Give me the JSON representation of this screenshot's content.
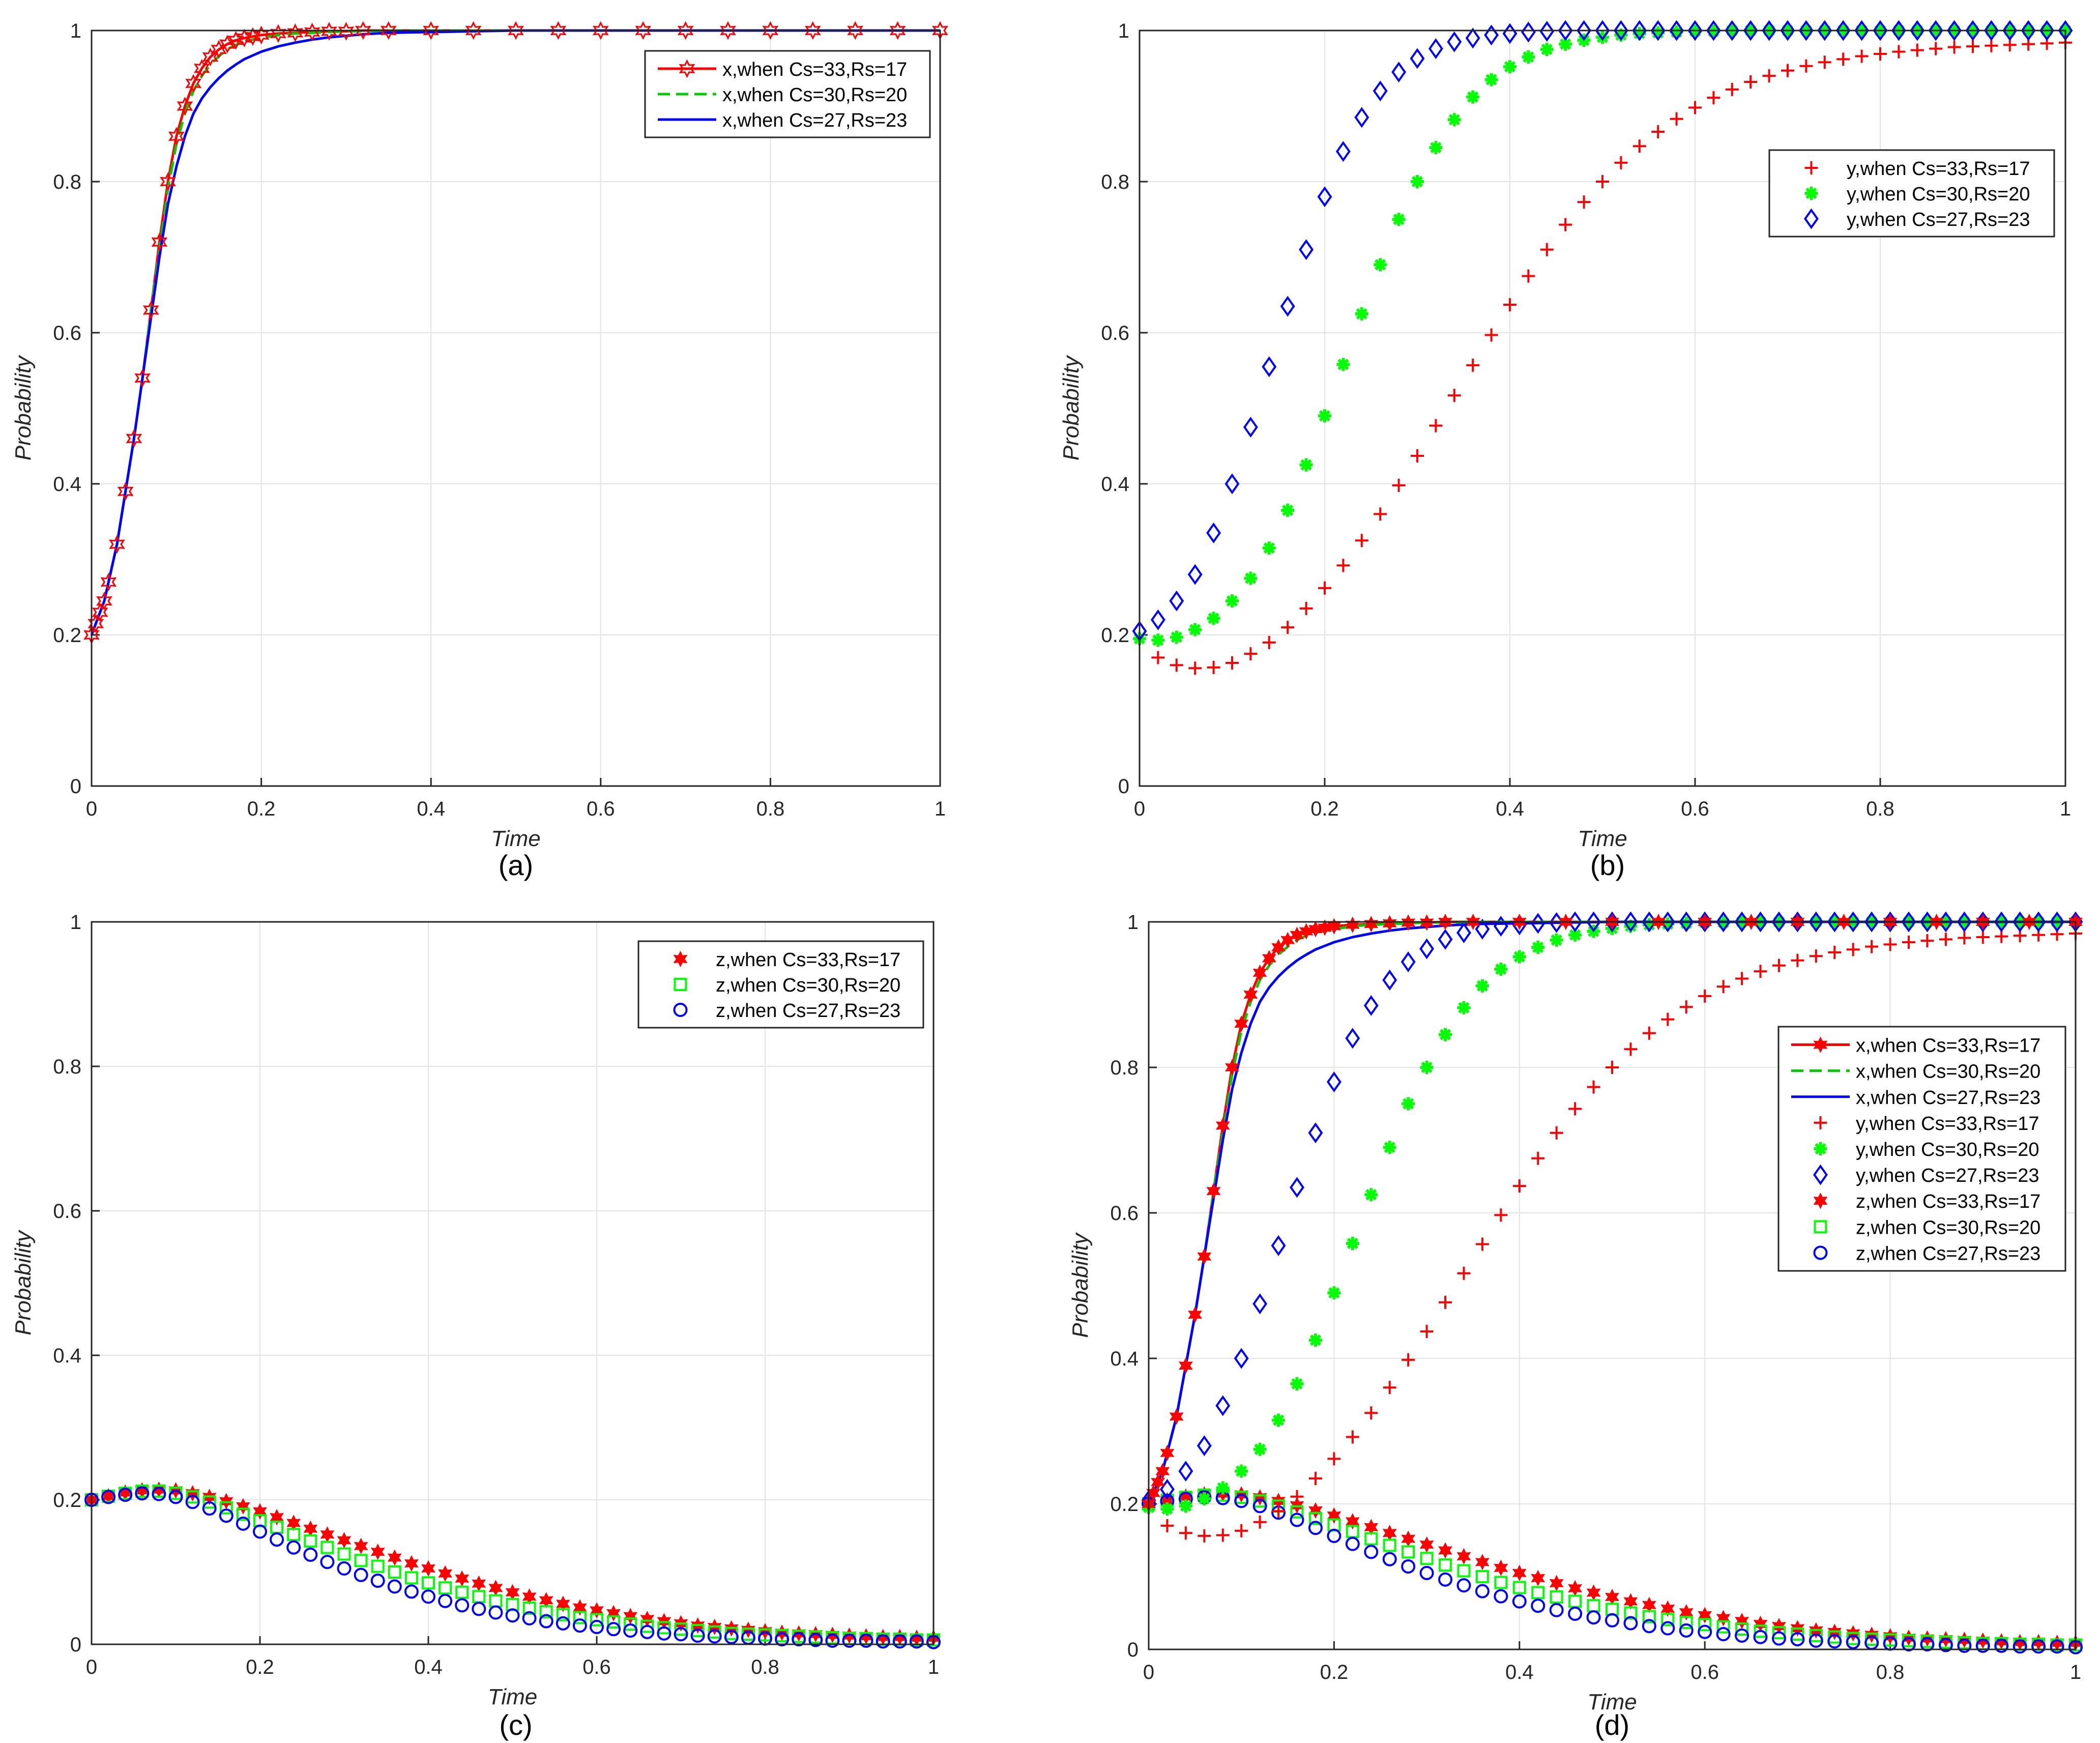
{
  "figure": {
    "panel_count": 4
  },
  "chart_data": [
    {
      "type": "line",
      "panel": "(a)",
      "xlabel": "Time",
      "ylabel": "Probability",
      "xlim": [
        0,
        1
      ],
      "ylim": [
        0,
        1
      ],
      "xticks": [
        "0",
        "0.2",
        "0.4",
        "0.6",
        "0.8",
        "1"
      ],
      "yticks": [
        "0",
        "0.2",
        "0.4",
        "0.6",
        "0.8",
        "1"
      ],
      "grid": true,
      "legend_position": "top-right",
      "x": [
        0,
        0.005,
        0.01,
        0.015,
        0.02,
        0.03,
        0.04,
        0.05,
        0.06,
        0.07,
        0.08,
        0.09,
        0.1,
        0.11,
        0.12,
        0.13,
        0.14,
        0.15,
        0.16,
        0.17,
        0.18,
        0.19,
        0.2,
        0.22,
        0.24,
        0.26,
        0.28,
        0.3,
        0.32,
        0.35,
        0.4,
        0.45,
        0.5,
        0.55,
        0.6,
        0.65,
        0.7,
        0.75,
        0.8,
        0.85,
        0.9,
        0.95,
        1.0
      ],
      "series": [
        {
          "name": "x,when Cs=33,Rs=17",
          "style": "line+hexagram",
          "color": "#ff0000",
          "values": [
            0.2,
            0.215,
            0.23,
            0.245,
            0.27,
            0.32,
            0.39,
            0.46,
            0.54,
            0.63,
            0.72,
            0.8,
            0.86,
            0.9,
            0.93,
            0.95,
            0.965,
            0.975,
            0.982,
            0.987,
            0.99,
            0.992,
            0.994,
            0.996,
            0.997,
            0.998,
            0.999,
            0.999,
            1,
            1,
            1,
            1,
            1,
            1,
            1,
            1,
            1,
            1,
            1,
            1,
            1,
            1,
            1
          ]
        },
        {
          "name": "x,when Cs=30,Rs=20",
          "style": "dashed",
          "color": "#00cc00",
          "values": [
            0.2,
            0.215,
            0.23,
            0.245,
            0.27,
            0.32,
            0.39,
            0.46,
            0.54,
            0.63,
            0.71,
            0.79,
            0.85,
            0.89,
            0.92,
            0.94,
            0.955,
            0.966,
            0.975,
            0.981,
            0.985,
            0.988,
            0.99,
            0.994,
            0.996,
            0.997,
            0.998,
            0.999,
            0.999,
            1,
            1,
            1,
            1,
            1,
            1,
            1,
            1,
            1,
            1,
            1,
            1,
            1,
            1
          ]
        },
        {
          "name": "x,when Cs=27,Rs=23",
          "style": "solid",
          "color": "#0000ff",
          "values": [
            0.2,
            0.215,
            0.23,
            0.245,
            0.27,
            0.32,
            0.39,
            0.46,
            0.54,
            0.62,
            0.7,
            0.77,
            0.82,
            0.86,
            0.89,
            0.91,
            0.925,
            0.937,
            0.947,
            0.955,
            0.962,
            0.967,
            0.972,
            0.979,
            0.984,
            0.988,
            0.991,
            0.993,
            0.995,
            0.997,
            0.998,
            0.999,
            1,
            1,
            1,
            1,
            1,
            1,
            1,
            1,
            1,
            1,
            1
          ]
        }
      ]
    },
    {
      "type": "scatter",
      "panel": "(b)",
      "xlabel": "Time",
      "ylabel": "Probability",
      "xlim": [
        0,
        1
      ],
      "ylim": [
        0,
        1
      ],
      "xticks": [
        "0",
        "0.2",
        "0.4",
        "0.6",
        "0.8",
        "1"
      ],
      "yticks": [
        "0",
        "0.2",
        "0.4",
        "0.6",
        "0.8",
        "1"
      ],
      "grid": true,
      "legend_position": "top-right",
      "x": [
        0,
        0.02,
        0.04,
        0.06,
        0.08,
        0.1,
        0.12,
        0.14,
        0.16,
        0.18,
        0.2,
        0.22,
        0.24,
        0.26,
        0.28,
        0.3,
        0.32,
        0.34,
        0.36,
        0.38,
        0.4,
        0.42,
        0.44,
        0.46,
        0.48,
        0.5,
        0.52,
        0.54,
        0.56,
        0.58,
        0.6,
        0.62,
        0.64,
        0.66,
        0.68,
        0.7,
        0.72,
        0.74,
        0.76,
        0.78,
        0.8,
        0.82,
        0.84,
        0.86,
        0.88,
        0.9,
        0.92,
        0.94,
        0.96,
        0.98,
        1.0
      ],
      "series": [
        {
          "name": "y,when Cs=33,Rs=17",
          "marker": "plus",
          "color": "#ff0000",
          "values": [
            0.195,
            0.17,
            0.16,
            0.156,
            0.157,
            0.163,
            0.175,
            0.19,
            0.21,
            0.235,
            0.262,
            0.292,
            0.325,
            0.36,
            0.398,
            0.437,
            0.477,
            0.517,
            0.557,
            0.597,
            0.637,
            0.675,
            0.71,
            0.743,
            0.773,
            0.8,
            0.825,
            0.847,
            0.866,
            0.883,
            0.898,
            0.911,
            0.922,
            0.932,
            0.94,
            0.947,
            0.953,
            0.958,
            0.962,
            0.966,
            0.969,
            0.972,
            0.974,
            0.976,
            0.978,
            0.979,
            0.98,
            0.981,
            0.982,
            0.983,
            0.984
          ]
        },
        {
          "name": "y,when Cs=30,Rs=20",
          "marker": "asterisk",
          "color": "#00ff00",
          "values": [
            0.195,
            0.193,
            0.197,
            0.207,
            0.222,
            0.245,
            0.275,
            0.315,
            0.365,
            0.425,
            0.49,
            0.558,
            0.625,
            0.69,
            0.75,
            0.8,
            0.845,
            0.882,
            0.912,
            0.935,
            0.952,
            0.965,
            0.975,
            0.982,
            0.987,
            0.991,
            0.994,
            0.996,
            0.997,
            0.998,
            0.999,
            0.999,
            1,
            1,
            1,
            1,
            1,
            1,
            1,
            1,
            1,
            1,
            1,
            1,
            1,
            1,
            1,
            1,
            1,
            1,
            1
          ]
        },
        {
          "name": "y,when Cs=27,Rs=23",
          "marker": "diamond",
          "color": "#0000ff",
          "values": [
            0.205,
            0.22,
            0.245,
            0.28,
            0.335,
            0.4,
            0.475,
            0.555,
            0.635,
            0.71,
            0.78,
            0.84,
            0.885,
            0.92,
            0.945,
            0.963,
            0.976,
            0.985,
            0.99,
            0.994,
            0.996,
            0.998,
            0.999,
            1,
            1,
            1,
            1,
            1,
            1,
            1,
            1,
            1,
            1,
            1,
            1,
            1,
            1,
            1,
            1,
            1,
            1,
            1,
            1,
            1,
            1,
            1,
            1,
            1,
            1,
            1,
            1
          ]
        }
      ]
    },
    {
      "type": "scatter",
      "panel": "(c)",
      "xlabel": "Time",
      "ylabel": "Probability",
      "xlim": [
        0,
        1
      ],
      "ylim": [
        0,
        1
      ],
      "xticks": [
        "0",
        "0.2",
        "0.4",
        "0.6",
        "0.8",
        "1"
      ],
      "yticks": [
        "0",
        "0.2",
        "0.4",
        "0.6",
        "0.8",
        "1"
      ],
      "grid": true,
      "legend_position": "top-right",
      "x": [
        0,
        0.02,
        0.04,
        0.06,
        0.08,
        0.1,
        0.12,
        0.14,
        0.16,
        0.18,
        0.2,
        0.22,
        0.24,
        0.26,
        0.28,
        0.3,
        0.32,
        0.34,
        0.36,
        0.38,
        0.4,
        0.42,
        0.44,
        0.46,
        0.48,
        0.5,
        0.52,
        0.54,
        0.56,
        0.58,
        0.6,
        0.62,
        0.64,
        0.66,
        0.68,
        0.7,
        0.72,
        0.74,
        0.76,
        0.78,
        0.8,
        0.82,
        0.84,
        0.86,
        0.88,
        0.9,
        0.92,
        0.94,
        0.96,
        0.98,
        1.0
      ],
      "series": [
        {
          "name": "z,when Cs=33,Rs=17",
          "marker": "hexagram",
          "color": "#ff0000",
          "values": [
            0.2,
            0.205,
            0.21,
            0.213,
            0.214,
            0.213,
            0.209,
            0.204,
            0.198,
            0.191,
            0.184,
            0.176,
            0.168,
            0.16,
            0.152,
            0.144,
            0.136,
            0.128,
            0.12,
            0.112,
            0.105,
            0.098,
            0.091,
            0.084,
            0.078,
            0.072,
            0.066,
            0.061,
            0.056,
            0.051,
            0.047,
            0.043,
            0.039,
            0.035,
            0.032,
            0.029,
            0.026,
            0.024,
            0.022,
            0.02,
            0.018,
            0.016,
            0.015,
            0.014,
            0.013,
            0.012,
            0.011,
            0.01,
            0.01,
            0.009,
            0.009
          ]
        },
        {
          "name": "z,when Cs=30,Rs=20",
          "marker": "square",
          "color": "#00ff00",
          "values": [
            0.2,
            0.205,
            0.209,
            0.212,
            0.212,
            0.209,
            0.204,
            0.197,
            0.189,
            0.18,
            0.171,
            0.162,
            0.152,
            0.143,
            0.134,
            0.125,
            0.116,
            0.108,
            0.1,
            0.092,
            0.085,
            0.078,
            0.072,
            0.066,
            0.06,
            0.055,
            0.05,
            0.045,
            0.041,
            0.037,
            0.034,
            0.031,
            0.028,
            0.025,
            0.023,
            0.021,
            0.019,
            0.017,
            0.015,
            0.014,
            0.013,
            0.012,
            0.011,
            0.01,
            0.009,
            0.008,
            0.008,
            0.007,
            0.007,
            0.006,
            0.006
          ]
        },
        {
          "name": "z,when Cs=27,Rs=23",
          "marker": "circle",
          "color": "#0000ff",
          "values": [
            0.2,
            0.204,
            0.207,
            0.209,
            0.208,
            0.204,
            0.197,
            0.188,
            0.178,
            0.167,
            0.156,
            0.145,
            0.134,
            0.124,
            0.114,
            0.105,
            0.096,
            0.088,
            0.08,
            0.073,
            0.066,
            0.06,
            0.054,
            0.049,
            0.044,
            0.04,
            0.036,
            0.032,
            0.029,
            0.026,
            0.024,
            0.021,
            0.019,
            0.017,
            0.015,
            0.014,
            0.012,
            0.011,
            0.01,
            0.009,
            0.008,
            0.007,
            0.007,
            0.006,
            0.005,
            0.005,
            0.005,
            0.004,
            0.004,
            0.004,
            0.003
          ]
        }
      ]
    },
    {
      "type": "line",
      "panel": "(d)",
      "xlabel": "Time",
      "ylabel": "Probability",
      "xlim": [
        0,
        1
      ],
      "ylim": [
        0,
        1
      ],
      "xticks": [
        "0",
        "0.2",
        "0.4",
        "0.6",
        "0.8",
        "1"
      ],
      "yticks": [
        "0",
        "0.2",
        "0.4",
        "0.6",
        "0.8",
        "1"
      ],
      "grid": true,
      "legend_position": "top-right",
      "combined_from": [
        "(a)",
        "(b)",
        "(c)"
      ],
      "legend": [
        "x,when Cs=33,Rs=17",
        "x,when Cs=30,Rs=20",
        "x,when Cs=27,Rs=23",
        "y,when Cs=33,Rs=17",
        "y,when Cs=30,Rs=20",
        "y,when Cs=27,Rs=23",
        "z,when Cs=33,Rs=17",
        "z,when Cs=30,Rs=20",
        "z,when Cs=27,Rs=23"
      ]
    }
  ]
}
